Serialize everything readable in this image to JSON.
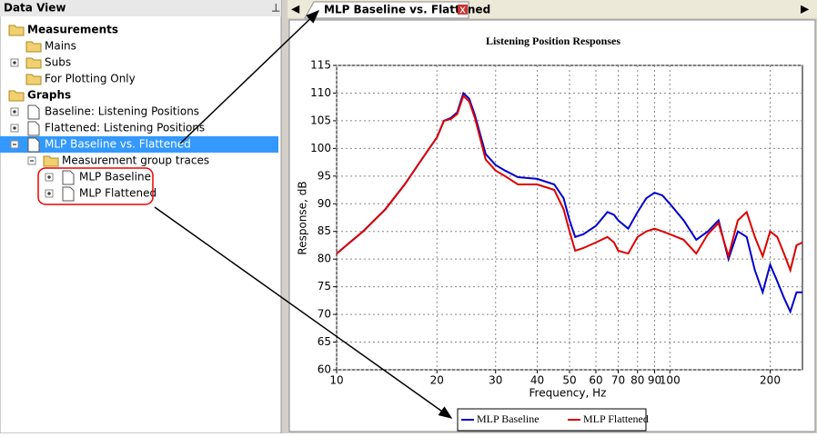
{
  "panel": {
    "title": "Data View",
    "tree": [
      "Measurements",
      "Mains",
      "Subs",
      "For Plotting Only",
      "Graphs",
      "Baseline: Listening Positions",
      "Flattened: Listening Positions",
      "MLP Baseline vs. Flattened",
      "Measurement group traces",
      "MLP Baseline",
      "MLP Flattened"
    ]
  },
  "tab": {
    "title": "MLP Baseline vs. Flattened"
  },
  "chart_data": {
    "type": "line",
    "title": "Listening Position Responses",
    "x_label": "Frequency, Hz",
    "y_label": "Response, dB",
    "x": [
      10,
      12,
      14,
      16,
      18,
      20,
      21,
      22,
      23,
      24,
      25,
      26,
      28,
      30,
      32,
      35,
      40,
      45,
      48,
      50,
      52,
      55,
      60,
      65,
      68,
      70,
      75,
      80,
      85,
      90,
      95,
      100,
      110,
      120,
      130,
      140,
      150,
      160,
      170,
      180,
      190,
      200,
      210,
      220,
      230,
      240,
      250
    ],
    "series": [
      {
        "name": "MLP Baseline",
        "color": "#0000cc",
        "values": [
          81,
          85,
          89,
          93.5,
          98,
          102,
          105,
          105.5,
          106.5,
          110,
          109,
          106,
          99,
          97,
          96,
          94.8,
          94.5,
          93.5,
          91,
          87,
          84,
          84.5,
          86,
          88.5,
          88,
          87,
          85.5,
          88.5,
          91,
          92,
          91.5,
          90,
          87,
          83.5,
          85,
          87,
          80,
          85,
          84,
          78,
          74,
          79,
          76,
          73,
          70.5,
          74,
          74
        ]
      },
      {
        "name": "MLP Flattened",
        "color": "#dd0000",
        "values": [
          81,
          85,
          89,
          93.5,
          98,
          102,
          105,
          105.3,
          106.2,
          109.5,
          108.5,
          105.5,
          98,
          96,
          95,
          93.5,
          93.5,
          92.5,
          89,
          85,
          81.5,
          82,
          83,
          84,
          83,
          81.5,
          81,
          84,
          85,
          85.5,
          85,
          84.5,
          83.5,
          81,
          84.5,
          86.5,
          80.5,
          87,
          88.5,
          84,
          80.5,
          85,
          84,
          81,
          78,
          82.5,
          83
        ]
      }
    ],
    "xlim": [
      10,
      250
    ],
    "xticks": [
      10,
      20,
      30,
      40,
      50,
      60,
      70,
      80,
      90,
      100,
      200
    ],
    "xscale": "log",
    "ylim": [
      60,
      115
    ],
    "yticks": [
      60,
      65,
      70,
      75,
      80,
      85,
      90,
      95,
      100,
      105,
      110,
      115
    ],
    "grid": true
  }
}
